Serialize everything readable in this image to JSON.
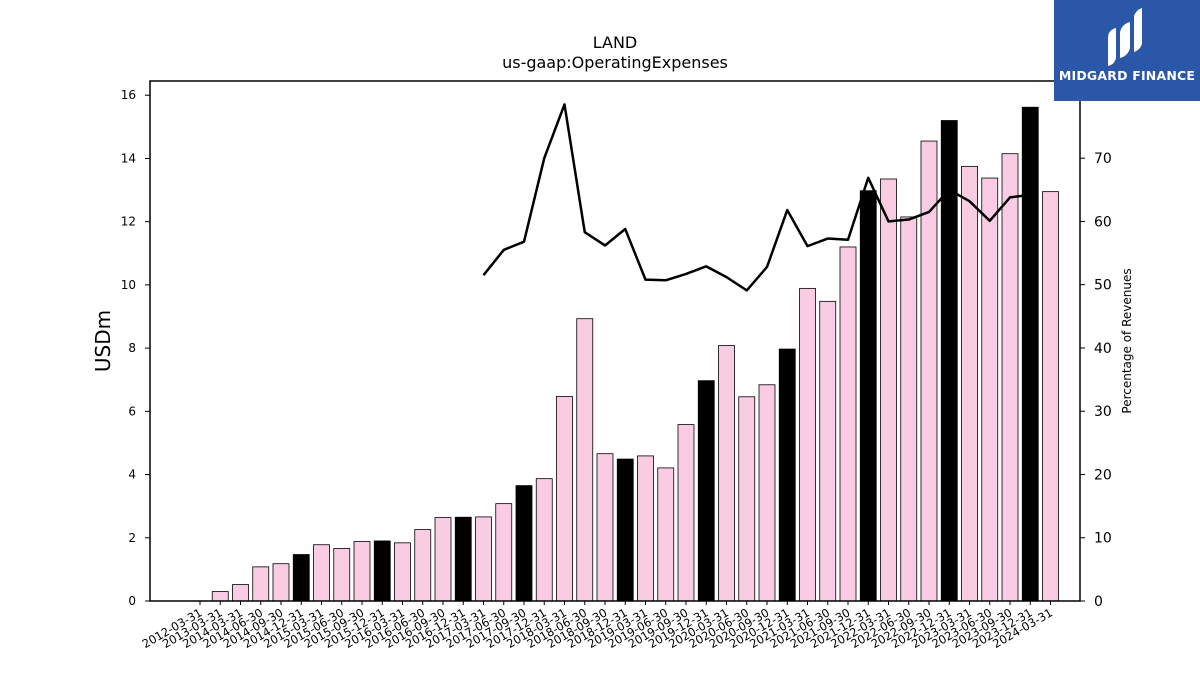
{
  "chart_data": {
    "type": "bar",
    "title": "LAND",
    "subtitle": "us-gaap:OperatingExpenses",
    "ylabel": "USDm",
    "y2label": "Percentage of Revenues",
    "ylim": [
      0,
      16.45
    ],
    "y2lim": [
      0,
      82.2
    ],
    "yticks": [
      0,
      2,
      4,
      6,
      8,
      10,
      12,
      14,
      16
    ],
    "y2ticks": [
      0,
      10,
      20,
      30,
      40,
      50,
      60,
      70
    ],
    "grid": false,
    "categories": [
      "2012-03-31",
      "2013-03-31",
      "2014-03-31",
      "2014-06-30",
      "2014-09-30",
      "2014-12-31",
      "2015-03-31",
      "2015-06-30",
      "2015-09-30",
      "2015-12-31",
      "2016-03-31",
      "2016-06-30",
      "2016-09-30",
      "2016-12-31",
      "2017-03-31",
      "2017-06-30",
      "2017-09-30",
      "2017-12-31",
      "2018-03-31",
      "2018-06-30",
      "2018-09-30",
      "2018-12-31",
      "2019-03-31",
      "2019-06-30",
      "2019-09-30",
      "2019-12-31",
      "2020-03-31",
      "2020-06-30",
      "2020-09-30",
      "2020-12-31",
      "2021-03-31",
      "2021-06-30",
      "2021-09-30",
      "2021-12-31",
      "2022-03-31",
      "2022-06-30",
      "2022-09-30",
      "2022-12-31",
      "2023-03-31",
      "2023-06-30",
      "2023-09-30",
      "2023-12-31",
      "2024-03-31"
    ],
    "series": [
      {
        "type": "bar",
        "values": [
          null,
          0.3,
          0.52,
          1.08,
          1.18,
          1.47,
          1.78,
          1.66,
          1.88,
          1.9,
          1.84,
          2.26,
          2.64,
          2.65,
          2.66,
          3.08,
          3.65,
          3.87,
          6.47,
          8.93,
          4.66,
          4.49,
          4.59,
          4.21,
          5.58,
          6.97,
          8.08,
          6.46,
          6.84,
          7.97,
          9.89,
          9.48,
          11.2,
          12.98,
          13.35,
          12.15,
          14.55,
          15.2,
          13.75,
          13.38,
          14.15,
          15.62,
          12.95
        ],
        "highlight": [
          false,
          false,
          false,
          false,
          false,
          true,
          false,
          false,
          false,
          true,
          false,
          false,
          false,
          true,
          false,
          false,
          true,
          false,
          false,
          false,
          false,
          true,
          false,
          false,
          false,
          true,
          false,
          false,
          false,
          true,
          false,
          false,
          false,
          true,
          false,
          false,
          false,
          true,
          false,
          false,
          false,
          true,
          false
        ]
      },
      {
        "type": "line",
        "axis": "right",
        "values": [
          null,
          null,
          null,
          null,
          null,
          null,
          null,
          null,
          null,
          null,
          null,
          null,
          null,
          null,
          51.5,
          55.5,
          56.8,
          70.0,
          78.5,
          58.3,
          56.2,
          58.8,
          50.8,
          50.7,
          51.7,
          52.9,
          51.2,
          49.1,
          52.8,
          61.8,
          56.1,
          57.3,
          57.1,
          66.9,
          60.0,
          60.3,
          61.5,
          65.0,
          63.2,
          60.1,
          63.8,
          64.2,
          null
        ]
      }
    ],
    "colors": {
      "bar": "#f9cce3",
      "bar_highlight": "#000000",
      "bar_edge": "#000000",
      "line": "#000000"
    }
  },
  "logo": {
    "text": "MIDGARD FINANCE",
    "color": "#2a57a8"
  }
}
